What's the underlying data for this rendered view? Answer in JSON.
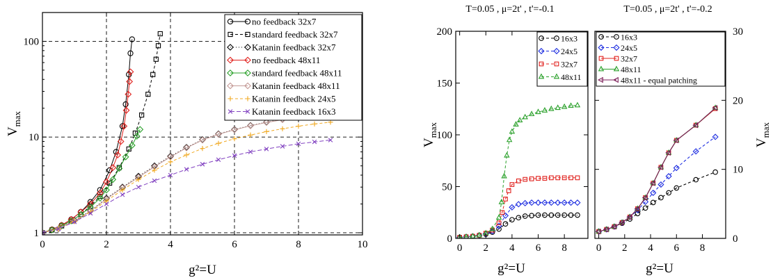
{
  "chart_data": [
    {
      "type": "line",
      "title": "",
      "xlabel": "g²=U",
      "ylabel": "V_max",
      "yscale": "log",
      "xlim": [
        0,
        10
      ],
      "ylim": [
        0.95,
        200
      ],
      "x_ticks": [
        "0",
        "2",
        "4",
        "6",
        "8",
        "10"
      ],
      "y_ticks": [
        "1",
        "10",
        "100"
      ],
      "grid": "dashed",
      "legend_position": "top-right",
      "series": [
        {
          "name": "no feedback 32x7",
          "color": "#000000",
          "marker": "circle",
          "dash": "",
          "x": [
            0,
            0.3,
            0.6,
            0.9,
            1.2,
            1.5,
            1.8,
            2.1,
            2.3,
            2.5,
            2.6,
            2.7,
            2.75,
            2.8
          ],
          "y": [
            1.0,
            1.08,
            1.2,
            1.38,
            1.65,
            2.1,
            2.8,
            4.5,
            7,
            13,
            22,
            45,
            75,
            105
          ]
        },
        {
          "name": "standard feedback 32x7",
          "color": "#000000",
          "marker": "square",
          "dash": "4,3",
          "x": [
            0,
            0.3,
            0.6,
            0.9,
            1.2,
            1.5,
            1.8,
            2.1,
            2.4,
            2.7,
            2.9,
            3.1,
            3.3,
            3.45,
            3.55,
            3.62,
            3.68
          ],
          "y": [
            1.0,
            1.07,
            1.18,
            1.33,
            1.55,
            1.9,
            2.4,
            3.3,
            4.8,
            7.5,
            11,
            17,
            28,
            45,
            65,
            90,
            120
          ]
        },
        {
          "name": "Katanin feedback 32x7",
          "color": "#000000",
          "marker": "diamond",
          "dash": "1,3",
          "x": [
            0,
            0.5,
            1,
            1.5,
            2,
            2.5,
            3,
            3.5,
            4,
            4.5,
            5,
            5.5,
            6,
            6.5,
            7,
            7.5,
            8,
            8.5,
            9
          ],
          "y": [
            1.0,
            1.1,
            1.35,
            1.7,
            2.3,
            3.0,
            3.9,
            5.0,
            6.3,
            7.8,
            9.4,
            10.8,
            12.0,
            13.2,
            14.3,
            15.3,
            16.3,
            17.0,
            17.6
          ]
        },
        {
          "name": "no feedback 48x11",
          "color": "#e0201c",
          "marker": "diamond",
          "dash": "",
          "x": [
            0,
            0.3,
            0.6,
            0.9,
            1.2,
            1.5,
            1.8,
            2.0,
            2.2,
            2.35,
            2.45,
            2.55,
            2.62,
            2.68,
            2.72,
            2.75
          ],
          "y": [
            1.0,
            1.08,
            1.2,
            1.38,
            1.65,
            2.0,
            2.6,
            3.4,
            4.8,
            6.5,
            9,
            13,
            19,
            28,
            38,
            48
          ]
        },
        {
          "name": "standard feedback 48x11",
          "color": "#2aa02a",
          "marker": "diamond",
          "dash": "",
          "x": [
            0,
            0.3,
            0.6,
            0.9,
            1.2,
            1.5,
            1.8,
            2.0,
            2.2,
            2.4,
            2.6,
            2.8,
            2.95,
            3.05
          ],
          "y": [
            1.0,
            1.07,
            1.18,
            1.33,
            1.55,
            1.85,
            2.3,
            2.8,
            3.6,
            4.7,
            6.2,
            8.2,
            10.2,
            12
          ]
        },
        {
          "name": "Katanin feedback 48x11",
          "color": "#c49a96",
          "marker": "diamond",
          "dash": "",
          "x": [
            0,
            0.5,
            1,
            1.5,
            2,
            2.5,
            3,
            3.5,
            4,
            4.5,
            5,
            5.5,
            6,
            6.5,
            7,
            7.5,
            8,
            8.5,
            9
          ],
          "y": [
            1.0,
            1.1,
            1.33,
            1.68,
            2.25,
            2.95,
            3.8,
            4.9,
            6.2,
            7.7,
            9.3,
            10.7,
            11.9,
            13.1,
            14.2,
            15.2,
            16.2,
            16.9,
            17.4
          ]
        },
        {
          "name": "Katanin feedback 24x5",
          "color": "#f0a820",
          "marker": "plus",
          "dash": "4,3",
          "x": [
            0,
            0.5,
            1,
            1.5,
            2,
            2.5,
            3,
            3.5,
            4,
            4.5,
            5,
            5.5,
            6,
            6.5,
            7,
            7.5,
            8,
            8.5,
            9
          ],
          "y": [
            1.0,
            1.1,
            1.32,
            1.65,
            2.15,
            2.8,
            3.6,
            4.5,
            5.5,
            6.5,
            7.6,
            8.6,
            9.6,
            10.5,
            11.4,
            12.2,
            13.0,
            13.7,
            14.3
          ]
        },
        {
          "name": "Katanin feedback 16x3",
          "color": "#8040c0",
          "marker": "cross",
          "dash": "6,3",
          "x": [
            0,
            0.5,
            1,
            1.5,
            2,
            2.5,
            3,
            3.5,
            4,
            4.5,
            5,
            5.5,
            6,
            6.5,
            7,
            7.5,
            8,
            8.5,
            9
          ],
          "y": [
            1.0,
            1.1,
            1.3,
            1.6,
            2.0,
            2.5,
            3.0,
            3.5,
            4.0,
            4.6,
            5.2,
            5.8,
            6.4,
            7.0,
            7.5,
            8.0,
            8.5,
            8.9,
            9.3
          ]
        }
      ]
    },
    {
      "type": "line",
      "title": "T=0.05 , μ=2t' , t'=-0.1",
      "xlabel": "g²=U",
      "ylabel": "V_max",
      "xlim": [
        -0.3,
        9.8
      ],
      "ylim": [
        0,
        200
      ],
      "x_ticks": [
        "0",
        "2",
        "4",
        "6",
        "8"
      ],
      "y_ticks": [
        "0",
        "50",
        "100",
        "150",
        "200"
      ],
      "legend_position": "top-right",
      "series": [
        {
          "name": "16x3",
          "color": "#000000",
          "marker": "circle",
          "dash": "4,3",
          "x": [
            0,
            0.5,
            1,
            1.5,
            2,
            2.5,
            3,
            3.5,
            4,
            4.5,
            5,
            5.5,
            6,
            6.5,
            7,
            7.5,
            8,
            8.5,
            9
          ],
          "y": [
            1,
            1.5,
            2,
            3,
            4,
            6,
            9,
            14,
            18,
            20,
            21.5,
            22,
            22.5,
            22.5,
            22.5,
            22.5,
            22.5,
            22.5,
            22.5
          ]
        },
        {
          "name": "24x5",
          "color": "#1c2ce0",
          "marker": "diamond",
          "dash": "4,3",
          "x": [
            0,
            0.5,
            1,
            1.5,
            2,
            2.5,
            3,
            3.5,
            4,
            4.5,
            5,
            5.5,
            6,
            6.5,
            7,
            7.5,
            8,
            8.5,
            9
          ],
          "y": [
            1,
            1.5,
            2,
            3,
            4.5,
            7,
            12,
            22,
            30,
            33,
            34,
            34.5,
            34.5,
            34.5,
            34.5,
            34.5,
            34.5,
            34.5,
            34.5
          ]
        },
        {
          "name": "32x7",
          "color": "#e0201c",
          "marker": "square",
          "dash": "4,3",
          "x": [
            0,
            0.5,
            1,
            1.5,
            2,
            2.5,
            3,
            3.25,
            3.5,
            3.75,
            4,
            4.5,
            5,
            5.5,
            6,
            6.5,
            7,
            7.5,
            8,
            8.5,
            9
          ],
          "y": [
            1,
            1.5,
            2,
            3,
            5,
            8,
            15,
            25,
            38,
            46,
            52,
            55.5,
            57,
            57.5,
            58,
            58,
            58.5,
            58.5,
            58.5,
            58.5,
            58.5
          ]
        },
        {
          "name": "48x11",
          "color": "#2aa02a",
          "marker": "triangle",
          "dash": "4,3",
          "x": [
            0,
            0.5,
            1,
            1.5,
            2,
            2.5,
            3,
            3.2,
            3.4,
            3.6,
            3.8,
            4,
            4.3,
            4.6,
            5,
            5.5,
            6,
            6.5,
            7,
            7.5,
            8,
            8.5,
            9
          ],
          "y": [
            1,
            1.5,
            2,
            3,
            5,
            9,
            20,
            35,
            60,
            80,
            95,
            103,
            110,
            114,
            117,
            120,
            122,
            123.5,
            125,
            126,
            127,
            128,
            128.5
          ]
        }
      ]
    },
    {
      "type": "line",
      "title": "T=0.05 , μ=2t' , t'=-0.2",
      "xlabel": "g²=U",
      "ylabel": "V_max",
      "xlim": [
        -0.3,
        9.8
      ],
      "ylim": [
        0,
        30
      ],
      "x_ticks": [
        "0",
        "2",
        "4",
        "6",
        "8"
      ],
      "y_ticks": [
        "0",
        "10",
        "20",
        "30"
      ],
      "legend_position": "top-left",
      "series": [
        {
          "name": "16x3",
          "color": "#000000",
          "marker": "circle",
          "dash": "4,3",
          "x": [
            0,
            0.6,
            1.2,
            1.8,
            2.4,
            3.0,
            3.6,
            4.2,
            4.8,
            5.4,
            6.0,
            7.5,
            9.0
          ],
          "y": [
            1.0,
            1.3,
            1.7,
            2.2,
            2.8,
            3.6,
            4.4,
            5.2,
            5.9,
            6.6,
            7.3,
            8.5,
            9.6
          ]
        },
        {
          "name": "24x5",
          "color": "#1c2ce0",
          "marker": "diamond",
          "dash": "4,3",
          "x": [
            0,
            0.6,
            1.2,
            1.8,
            2.4,
            3.0,
            3.6,
            4.2,
            4.8,
            5.4,
            6.0,
            7.5,
            9.0
          ],
          "y": [
            1.0,
            1.3,
            1.7,
            2.3,
            3.1,
            4.1,
            5.3,
            6.6,
            7.8,
            9.0,
            10.2,
            12.6,
            14.7
          ]
        },
        {
          "name": "32x7",
          "color": "#e0201c",
          "marker": "square",
          "dash": "",
          "x": [
            0,
            0.6,
            1.2,
            1.8,
            2.4,
            3.0,
            3.6,
            4.2,
            4.8,
            5.4,
            6.0,
            7.5,
            9.0
          ],
          "y": [
            1.0,
            1.3,
            1.7,
            2.3,
            3.1,
            4.3,
            5.9,
            8.0,
            10.3,
            12.4,
            14.2,
            16.4,
            18.8
          ]
        },
        {
          "name": "48x11",
          "color": "#2aa02a",
          "marker": "triangle",
          "dash": "",
          "x": [
            0,
            0.6,
            1.2,
            1.8,
            2.4,
            3.0,
            3.6,
            4.2,
            4.8,
            5.4,
            6.0,
            7.5,
            9.0
          ],
          "y": [
            1.0,
            1.3,
            1.7,
            2.3,
            3.1,
            4.3,
            5.9,
            8.0,
            10.3,
            12.4,
            14.2,
            16.4,
            18.9
          ]
        },
        {
          "name": "48x11 - equal patching",
          "color": "#7b1e58",
          "marker": "triangle-left",
          "dash": "",
          "x": [
            0,
            0.6,
            1.2,
            1.8,
            2.4,
            3.0,
            3.6,
            4.2,
            4.8,
            5.4,
            6.0,
            7.5,
            9.0
          ],
          "y": [
            1.0,
            1.3,
            1.7,
            2.3,
            3.1,
            4.3,
            5.9,
            8.0,
            10.3,
            12.4,
            14.2,
            16.4,
            18.9
          ]
        }
      ]
    }
  ]
}
